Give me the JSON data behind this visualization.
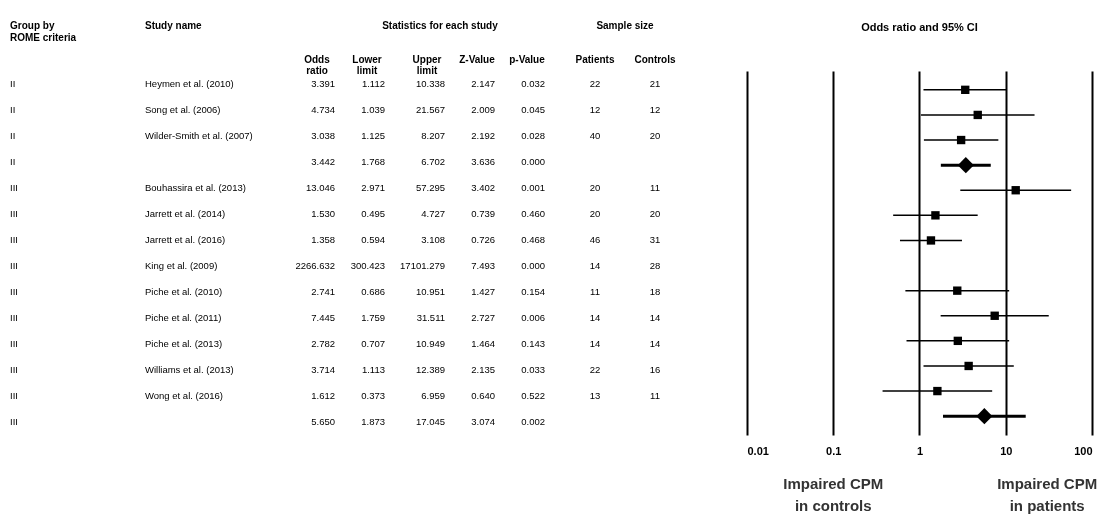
{
  "chart_data": [
    {
      "type": "other",
      "annotations": [
        "Group by",
        "ROME criteria",
        "Study name",
        "Statistics for each study",
        "Sample size",
        "Odds ratio",
        "Lower limit",
        "Upper limit",
        "Z-Value",
        "p-Value",
        "Patients",
        "Controls",
        "II",
        "Heymen et al. (2010)",
        "3.391",
        "1.112",
        "10.338",
        "2.147",
        "0.032",
        "22",
        "21",
        "II",
        "Song et al. (2006)",
        "4.734",
        "1.039",
        "21.567",
        "2.009",
        "0.045",
        "12",
        "12",
        "II",
        "Wilder-Smith et al. (2007)",
        "3.038",
        "1.125",
        "8.207",
        "2.192",
        "0.028",
        "40",
        "20",
        "II",
        "3.442",
        "1.768",
        "6.702",
        "3.636",
        "0.000",
        "III",
        "Bouhassira et al. (2013)",
        "13.046",
        "2.971",
        "57.295",
        "3.402",
        "0.001",
        "20",
        "11",
        "III",
        "Jarrett et al. (2014)",
        "1.530",
        "0.495",
        "4.727",
        "0.739",
        "0.460",
        "20",
        "20",
        "III",
        "Jarrett et al. (2016)",
        "1.358",
        "0.594",
        "3.108",
        "0.726",
        "0.468",
        "46",
        "31",
        "III",
        "King et al. (2009)",
        "2266.632",
        "300.423",
        "17101.279",
        "7.493",
        "0.000",
        "14",
        "28",
        "III",
        "Piche et al. (2010)",
        "2.741",
        "0.686",
        "10.951",
        "1.427",
        "0.154",
        "11",
        "18",
        "III",
        "Piche et al. (2011)",
        "7.445",
        "1.759",
        "31.511",
        "2.727",
        "0.006",
        "14",
        "14",
        "III",
        "Piche et al. (2013)",
        "2.782",
        "0.707",
        "10.949",
        "1.464",
        "0.143",
        "14",
        "14",
        "III",
        "Williams et al. (2013)",
        "3.714",
        "1.113",
        "12.389",
        "2.135",
        "0.033",
        "22",
        "16",
        "III",
        "Wong et al. (2016)",
        "1.612",
        "0.373",
        "6.959",
        "0.640",
        "0.522",
        "13",
        "11",
        "III",
        "5.650",
        "1.873",
        "17.045",
        "3.074",
        "0.002"
      ]
    },
    {
      "type": "scatter",
      "title": "Odds ratio and 95% CI",
      "orientation": "horizontal",
      "categories": [
        null,
        null,
        null,
        null,
        null,
        null,
        null,
        null,
        null,
        null,
        null,
        null,
        null,
        null
      ],
      "series": [
        {
          "type": "scatter",
          "marker": "square",
          "color": "#000000",
          "values": [
            3.391,
            4.734,
            3.038,
            null,
            13.046,
            1.53,
            1.358,
            null,
            2.741,
            7.445,
            2.782,
            3.714,
            1.612,
            null
          ],
          "errors": [
            [
              1.112,
              10.338
            ],
            [
              1.039,
              21.567
            ],
            [
              1.125,
              8.207
            ],
            null,
            [
              2.971,
              57.295
            ],
            [
              0.495,
              4.727
            ],
            [
              0.594,
              3.108
            ],
            null,
            [
              0.686,
              10.951
            ],
            [
              1.759,
              31.511
            ],
            [
              0.707,
              10.949
            ],
            [
              1.113,
              12.389
            ],
            [
              0.373,
              6.959
            ],
            null
          ]
        },
        {
          "type": "scatter",
          "marker": "diamond",
          "color": "#000000",
          "values": [
            null,
            null,
            null,
            3.442,
            null,
            null,
            null,
            null,
            null,
            null,
            null,
            null,
            null,
            5.65
          ],
          "errors": [
            null,
            null,
            null,
            [
              1.768,
              6.702
            ],
            null,
            null,
            null,
            null,
            null,
            null,
            null,
            null,
            null,
            [
              1.873,
              17.045
            ]
          ]
        }
      ],
      "log": "x",
      "xlim": [
        0.01,
        100
      ],
      "xticks": [
        0.01,
        0.1,
        1,
        10,
        100
      ],
      "grid": "x",
      "tick_labels": "x",
      "annotations": [
        "Impaired CPM in controls",
        "Impaired CPM in patients"
      ]
    }
  ]
}
